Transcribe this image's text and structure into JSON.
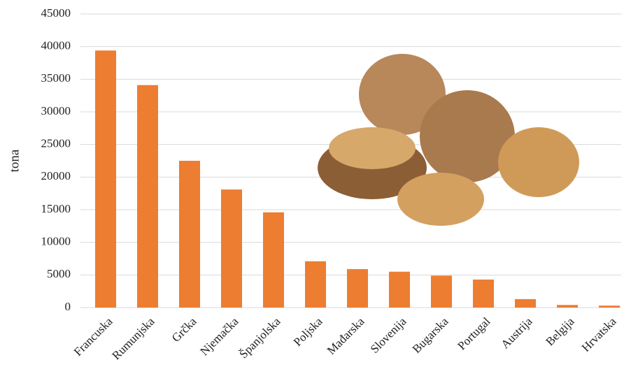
{
  "chart_data": {
    "type": "bar",
    "y_label": "tona",
    "categories": [
      "Francuska",
      "Rumunjska",
      "Grčka",
      "Njemačka",
      "Španjolska",
      "Poljska",
      "Mađarska",
      "Slovenija",
      "Bugarska",
      "Portugal",
      "Austrija",
      "Belgija",
      "Hrvatska"
    ],
    "values": [
      39400,
      34100,
      22500,
      18100,
      14600,
      7100,
      5900,
      5500,
      4900,
      4300,
      1300,
      400,
      300
    ],
    "color": "#ed7d31",
    "ylim": [
      0,
      45000
    ],
    "yticks": [
      0,
      5000,
      10000,
      15000,
      20000,
      25000,
      30000,
      35000,
      40000,
      45000
    ],
    "grid": true
  }
}
